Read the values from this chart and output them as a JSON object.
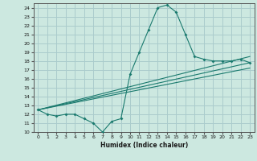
{
  "xlabel": "Humidex (Indice chaleur)",
  "xlim": [
    -0.5,
    23.5
  ],
  "ylim": [
    10,
    24.5
  ],
  "yticks": [
    10,
    11,
    12,
    13,
    14,
    15,
    16,
    17,
    18,
    19,
    20,
    21,
    22,
    23,
    24
  ],
  "xticks": [
    0,
    1,
    2,
    3,
    4,
    5,
    6,
    7,
    8,
    9,
    10,
    11,
    12,
    13,
    14,
    15,
    16,
    17,
    18,
    19,
    20,
    21,
    22,
    23
  ],
  "bg_color": "#cce8e0",
  "grid_color": "#aacccc",
  "line_color": "#1a7a6e",
  "line1_x": [
    0,
    1,
    2,
    3,
    4,
    5,
    6,
    7,
    8,
    9,
    10,
    11,
    12,
    13,
    14,
    15,
    16,
    17,
    18,
    19,
    20,
    21,
    22,
    23
  ],
  "line1_y": [
    12.5,
    12.0,
    11.8,
    12.0,
    12.0,
    11.5,
    11.0,
    10.0,
    11.2,
    11.5,
    16.5,
    19.0,
    21.5,
    24.0,
    24.3,
    23.5,
    21.0,
    18.5,
    18.2,
    18.0,
    18.0,
    18.0,
    18.2,
    17.8
  ],
  "straight_lines": [
    {
      "x0": 0,
      "y0": 12.5,
      "x1": 23,
      "y1": 18.5
    },
    {
      "x0": 0,
      "y0": 12.5,
      "x1": 23,
      "y1": 17.8
    },
    {
      "x0": 0,
      "y0": 12.5,
      "x1": 23,
      "y1": 17.2
    }
  ]
}
